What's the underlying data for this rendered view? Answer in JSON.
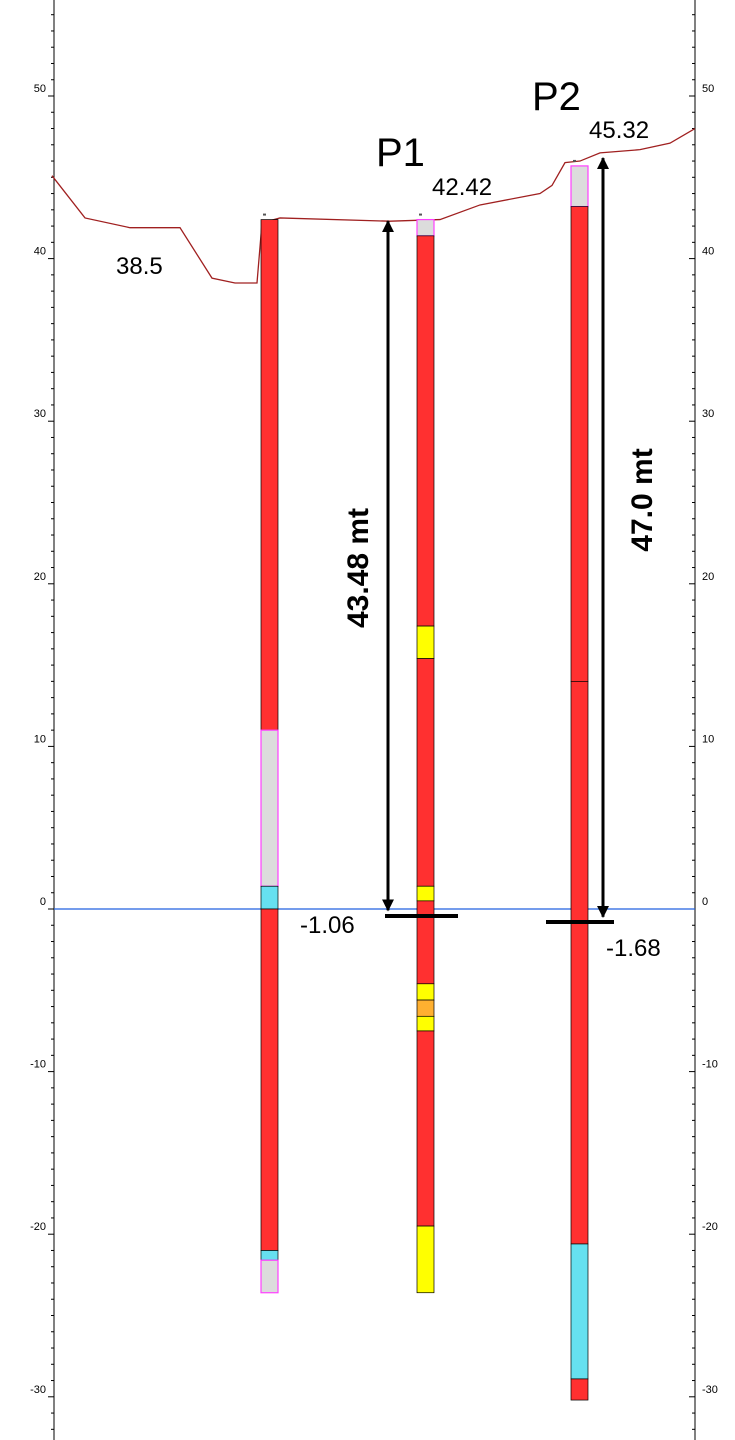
{
  "axis": {
    "ticks": [
      50,
      40,
      30,
      20,
      10,
      0,
      -10,
      -20,
      -30
    ],
    "tick_labels": [
      "50",
      "40",
      "30",
      "20",
      "10",
      "0",
      "-10",
      "-20",
      "-30"
    ],
    "range": [
      -32,
      56
    ]
  },
  "colors": {
    "ground_line": "#a02020",
    "water_line": "#2060e0",
    "red": "#ff3030",
    "grey": "#dcdcdc",
    "cyan": "#66e0f0",
    "yellow": "#ffff00",
    "orange": "#ffb030",
    "pink_border": "#ff40ff",
    "arrow": "#000000"
  },
  "ground_profile": [
    [
      52,
      45.1
    ],
    [
      85,
      42.5
    ],
    [
      130,
      41.9
    ],
    [
      180,
      41.9
    ],
    [
      212,
      38.8
    ],
    [
      235,
      38.5
    ],
    [
      257,
      38.5
    ],
    [
      262,
      42.2
    ],
    [
      280,
      42.5
    ],
    [
      390,
      42.3
    ],
    [
      440,
      42.4
    ],
    [
      480,
      43.3
    ],
    [
      540,
      44.0
    ],
    [
      552,
      44.5
    ],
    [
      565,
      45.9
    ],
    [
      580,
      46.0
    ],
    [
      600,
      46.5
    ],
    [
      640,
      46.7
    ],
    [
      670,
      47.1
    ],
    [
      695,
      48.0
    ]
  ],
  "boreholes": [
    {
      "name": "",
      "layers": [
        {
          "top": 42.4,
          "bottom": 11.0,
          "fill": "red"
        },
        {
          "top": 11.0,
          "bottom": 1.4,
          "fill": "grey",
          "border": "pink"
        },
        {
          "top": 1.4,
          "bottom": 0.0,
          "fill": "cyan"
        },
        {
          "top": 0.0,
          "bottom": -21.0,
          "fill": "red"
        },
        {
          "top": -21.0,
          "bottom": -21.6,
          "fill": "cyan"
        },
        {
          "top": -21.6,
          "bottom": -23.6,
          "fill": "grey",
          "border": "pink"
        }
      ]
    },
    {
      "name": "P1",
      "layers": [
        {
          "top": 42.4,
          "bottom": 41.4,
          "fill": "grey",
          "border": "pink"
        },
        {
          "top": 41.4,
          "bottom": 17.4,
          "fill": "red"
        },
        {
          "top": 17.4,
          "bottom": 15.4,
          "fill": "yellow"
        },
        {
          "top": 15.4,
          "bottom": 1.4,
          "fill": "red"
        },
        {
          "top": 1.4,
          "bottom": 0.5,
          "fill": "yellow"
        },
        {
          "top": 0.5,
          "bottom": -4.6,
          "fill": "red"
        },
        {
          "top": -4.6,
          "bottom": -5.6,
          "fill": "yellow"
        },
        {
          "top": -5.6,
          "bottom": -6.6,
          "fill": "orange"
        },
        {
          "top": -6.6,
          "bottom": -7.5,
          "fill": "yellow"
        },
        {
          "top": -7.5,
          "bottom": -19.5,
          "fill": "red"
        },
        {
          "top": -19.5,
          "bottom": -23.6,
          "fill": "yellow"
        }
      ]
    },
    {
      "name": "P2",
      "layers": [
        {
          "top": 45.7,
          "bottom": 43.2,
          "fill": "grey",
          "border": "pink"
        },
        {
          "top": 43.2,
          "bottom": 14.0,
          "fill": "red"
        },
        {
          "top": 14.0,
          "bottom": -20.6,
          "fill": "red"
        },
        {
          "top": -20.6,
          "bottom": -28.9,
          "fill": "cyan"
        },
        {
          "top": -28.9,
          "bottom": -30.2,
          "fill": "red"
        }
      ]
    }
  ],
  "annotations": {
    "p1_label": "P1",
    "p2_label": "P2",
    "left_elev": "38.5",
    "p1_top": "42.42",
    "p2_top": "45.32",
    "p1_bottom": "-1.06",
    "p2_bottom": "-1.68",
    "p1_depth": "43.48 mt",
    "p2_depth": "47.0 mt"
  },
  "dimensions": [
    {
      "name": "p1",
      "top": 42.42,
      "bottom": -0.2
    },
    {
      "name": "p2",
      "top": 46.3,
      "bottom": -0.6
    }
  ]
}
